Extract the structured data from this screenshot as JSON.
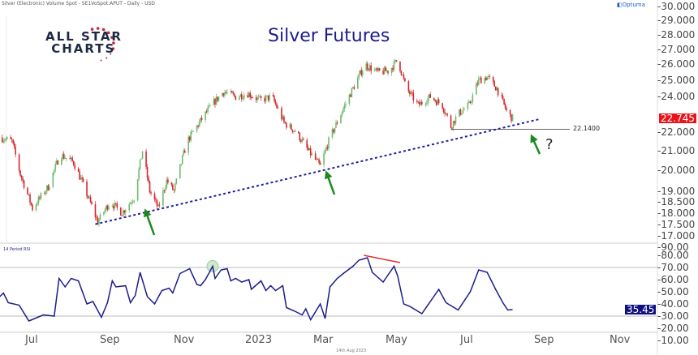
{
  "header": {
    "instrument": "Silver (Electronic) Volume Spot - SE1VoSpot:APUT - Daily - USD",
    "vendor": "Optuma",
    "logo": "ALL STAR CHARTS",
    "date_stamp": "14th Aug 2023"
  },
  "colors": {
    "up": "#6dbb6d",
    "down": "#d7262b",
    "rsi": "#1c1c8a",
    "trendline": "#2020a0",
    "arrows": "#1a8a1a",
    "divergence": "#e03030",
    "last_price_bg": "#e8141c",
    "last_rsi_bg": "#101080"
  },
  "chart_data": [
    {
      "type": "candlestick",
      "title": "Silver Futures",
      "yscale": "log",
      "ylim": [
        17,
        30
      ],
      "yticks": [
        "30.000",
        "29.000",
        "28.000",
        "27.000",
        "26.000",
        "25.000",
        "24.000",
        "23.000",
        "22.000",
        "21.000",
        "20.000",
        "19.000",
        "18.500",
        "18.000",
        "17.500",
        "17.000"
      ],
      "last_price": "22.745",
      "close_points": [
        [
          "2022-06-04",
          21.7
        ],
        [
          "2022-06-14",
          21.5
        ],
        [
          "2022-06-21",
          19.8
        ],
        [
          "2022-07-01",
          18.2
        ],
        [
          "2022-07-14",
          19.2
        ],
        [
          "2022-07-24",
          20.8
        ],
        [
          "2022-08-04",
          20.4
        ],
        [
          "2022-08-14",
          19.0
        ],
        [
          "2022-08-24",
          17.6
        ],
        [
          "2022-09-03",
          18.5
        ],
        [
          "2022-09-13",
          18.0
        ],
        [
          "2022-09-23",
          18.7
        ],
        [
          "2022-09-30",
          21.0
        ],
        [
          "2022-10-06",
          19.0
        ],
        [
          "2022-10-13",
          18.2
        ],
        [
          "2022-10-20",
          19.5
        ],
        [
          "2022-10-26",
          19.0
        ],
        [
          "2022-11-06",
          21.5
        ],
        [
          "2022-11-16",
          22.5
        ],
        [
          "2022-11-26",
          23.5
        ],
        [
          "2022-12-06",
          24.3
        ],
        [
          "2022-12-16",
          24.0
        ],
        [
          "2022-12-26",
          24.2
        ],
        [
          "2023-01-05",
          23.8
        ],
        [
          "2023-01-15",
          24.0
        ],
        [
          "2023-01-25",
          22.5
        ],
        [
          "2023-02-04",
          22.0
        ],
        [
          "2023-02-14",
          21.0
        ],
        [
          "2023-02-24",
          20.2
        ],
        [
          "2023-03-03",
          21.5
        ],
        [
          "2023-03-13",
          23.0
        ],
        [
          "2023-03-23",
          24.5
        ],
        [
          "2023-04-02",
          26.0
        ],
        [
          "2023-04-12",
          25.5
        ],
        [
          "2023-04-22",
          25.6
        ],
        [
          "2023-04-29",
          26.3
        ],
        [
          "2023-05-06",
          24.5
        ],
        [
          "2023-05-16",
          23.5
        ],
        [
          "2023-05-26",
          24.0
        ],
        [
          "2023-06-05",
          23.5
        ],
        [
          "2023-06-12",
          22.3
        ],
        [
          "2023-06-18",
          23.0
        ],
        [
          "2023-06-27",
          23.5
        ],
        [
          "2023-07-05",
          25.0
        ],
        [
          "2023-07-12",
          25.2
        ],
        [
          "2023-07-20",
          24.5
        ],
        [
          "2023-07-29",
          23.0
        ],
        [
          "2023-08-02",
          22.745
        ]
      ],
      "trendline": [
        [
          "2022-08-22",
          17.5
        ],
        [
          "2023-08-24",
          22.7
        ]
      ],
      "horizontal_level": {
        "value": 22.14,
        "label": "22.1400",
        "from": "2023-06-12",
        "to": "2023-09-20"
      },
      "arrows": [
        "2022-10-08",
        "2023-02-26",
        "2023-08-26"
      ],
      "annotation": "?"
    },
    {
      "type": "line",
      "label": "14 Period RSI",
      "ylim": [
        10,
        90
      ],
      "yticks": [
        "90.00",
        "80.00",
        "70.00",
        "60.00",
        "50.00",
        "40.00",
        "30.00",
        "20.00",
        "10.00"
      ],
      "levels": [
        70,
        30
      ],
      "last_value": "35.45",
      "points": [
        [
          "2022-06-04",
          46
        ],
        [
          "2022-06-07",
          49
        ],
        [
          "2022-06-11",
          41
        ],
        [
          "2022-06-20",
          39
        ],
        [
          "2022-06-28",
          26
        ],
        [
          "2022-07-10",
          31
        ],
        [
          "2022-07-19",
          30
        ],
        [
          "2022-07-23",
          61
        ],
        [
          "2022-07-28",
          54
        ],
        [
          "2022-08-02",
          61
        ],
        [
          "2022-08-08",
          59
        ],
        [
          "2022-08-15",
          40
        ],
        [
          "2022-08-20",
          42
        ],
        [
          "2022-08-27",
          29
        ],
        [
          "2022-09-01",
          41
        ],
        [
          "2022-09-05",
          59
        ],
        [
          "2022-09-08",
          54
        ],
        [
          "2022-09-16",
          55
        ],
        [
          "2022-09-20",
          41
        ],
        [
          "2022-09-24",
          47
        ],
        [
          "2022-09-28",
          66
        ],
        [
          "2022-10-04",
          46
        ],
        [
          "2022-10-10",
          40
        ],
        [
          "2022-10-16",
          51
        ],
        [
          "2022-10-22",
          53
        ],
        [
          "2022-10-25",
          49
        ],
        [
          "2022-10-31",
          65
        ],
        [
          "2022-11-08",
          69
        ],
        [
          "2022-11-14",
          56
        ],
        [
          "2022-11-17",
          55
        ],
        [
          "2022-11-21",
          60
        ],
        [
          "2022-11-27",
          71
        ],
        [
          "2022-11-29",
          61
        ],
        [
          "2022-12-04",
          68
        ],
        [
          "2022-12-09",
          69
        ],
        [
          "2022-12-12",
          59
        ],
        [
          "2022-12-16",
          61
        ],
        [
          "2022-12-21",
          58
        ],
        [
          "2022-12-27",
          60
        ],
        [
          "2022-12-29",
          52
        ],
        [
          "2023-01-06",
          59
        ],
        [
          "2023-01-10",
          51
        ],
        [
          "2023-01-14",
          55
        ],
        [
          "2023-01-18",
          51
        ],
        [
          "2023-01-24",
          55
        ],
        [
          "2023-01-27",
          37
        ],
        [
          "2023-02-03",
          34
        ],
        [
          "2023-02-09",
          31
        ],
        [
          "2023-02-12",
          36
        ],
        [
          "2023-02-16",
          27
        ],
        [
          "2023-02-24",
          40
        ],
        [
          "2023-02-28",
          28
        ],
        [
          "2023-03-04",
          54
        ],
        [
          "2023-03-10",
          61
        ],
        [
          "2023-03-15",
          65
        ],
        [
          "2023-03-23",
          71
        ],
        [
          "2023-03-28",
          76
        ],
        [
          "2023-04-04",
          78
        ],
        [
          "2023-04-08",
          66
        ],
        [
          "2023-04-17",
          58
        ],
        [
          "2023-04-26",
          71
        ],
        [
          "2023-04-29",
          63
        ],
        [
          "2023-05-04",
          40
        ],
        [
          "2023-05-09",
          38
        ],
        [
          "2023-05-19",
          32
        ],
        [
          "2023-06-02",
          52
        ],
        [
          "2023-06-08",
          41
        ],
        [
          "2023-06-18",
          35
        ],
        [
          "2023-06-28",
          50
        ],
        [
          "2023-07-05",
          68
        ],
        [
          "2023-07-12",
          66
        ],
        [
          "2023-07-19",
          52
        ],
        [
          "2023-07-25",
          41
        ],
        [
          "2023-07-29",
          35
        ],
        [
          "2023-08-02",
          35.45
        ]
      ],
      "divergence_line": [
        [
          "2023-04-01",
          80
        ],
        [
          "2023-05-01",
          74
        ]
      ],
      "highlight": [
        "2022-11-27",
        71
      ]
    },
    {
      "x_ticks": [
        "Jul",
        "Sep",
        "Nov",
        "2023",
        "Mar",
        "May",
        "Jul",
        "Sep",
        "Nov"
      ]
    }
  ]
}
